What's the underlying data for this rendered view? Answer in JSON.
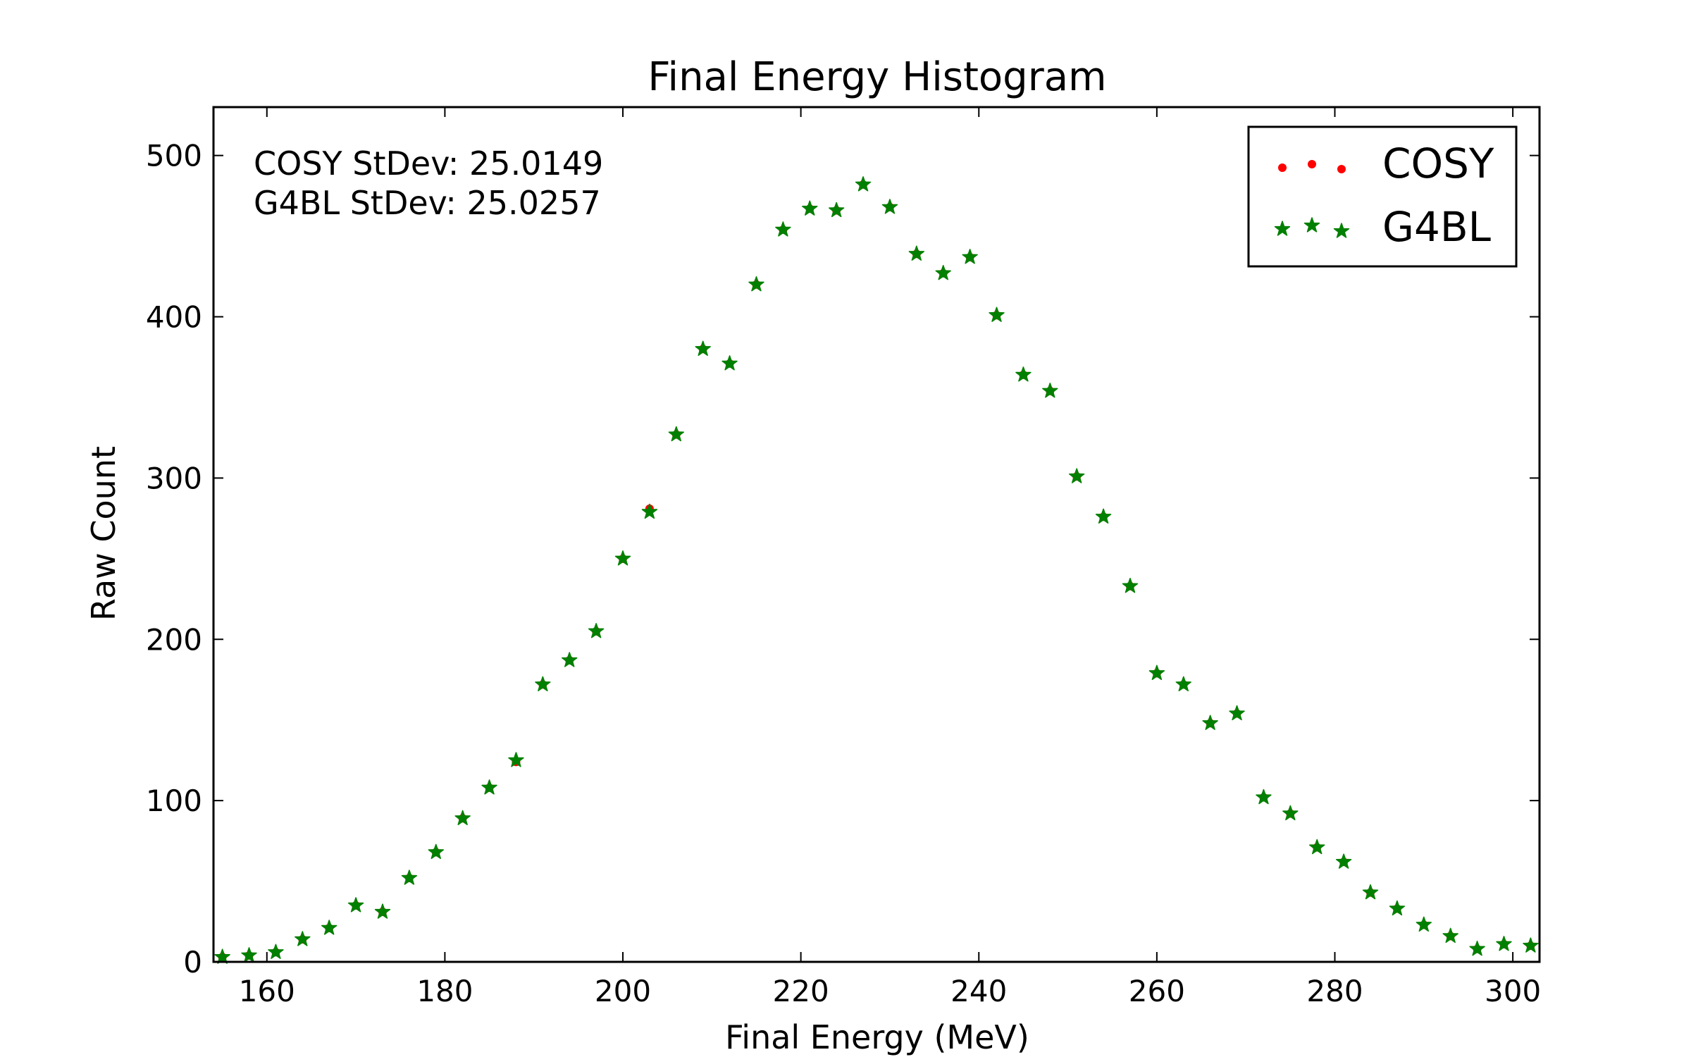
{
  "chart_data": {
    "type": "scatter",
    "title": "Final Energy Histogram",
    "xlabel": "Final Energy (MeV)",
    "ylabel": "Raw Count",
    "xlim": [
      154,
      303
    ],
    "ylim": [
      0,
      530
    ],
    "xticks": [
      160,
      180,
      200,
      220,
      240,
      260,
      280,
      300
    ],
    "yticks": [
      0,
      100,
      200,
      300,
      400,
      500
    ],
    "grid": false,
    "legend_position": "top-right",
    "annotations": [
      "COSY StDev: 25.0149",
      "G4BL StDev: 25.0257"
    ],
    "series": [
      {
        "name": "COSY",
        "marker": "dot",
        "color": "#ff0000",
        "x": [
          155,
          158,
          161,
          164,
          167,
          170,
          173,
          176,
          179,
          182,
          185,
          188,
          191,
          194,
          197,
          200,
          203,
          206,
          209,
          212,
          215,
          218,
          221,
          224,
          227,
          230,
          233,
          236,
          239,
          242,
          245,
          248,
          251,
          254,
          257,
          260,
          263,
          266,
          269,
          272,
          275,
          278,
          281,
          284,
          287,
          290,
          293,
          296,
          299,
          302
        ],
        "y": [
          3,
          4,
          6,
          14,
          21,
          35,
          31,
          52,
          68,
          89,
          108,
          124,
          172,
          187,
          205,
          250,
          281,
          327,
          380,
          371,
          420,
          454,
          467,
          466,
          482,
          468,
          439,
          427,
          437,
          401,
          364,
          354,
          301,
          276,
          233,
          179,
          172,
          148,
          154,
          102,
          92,
          71,
          62,
          43,
          33,
          23,
          16,
          8,
          11,
          10
        ]
      },
      {
        "name": "G4BL",
        "marker": "star",
        "color": "#008000",
        "x": [
          155,
          158,
          161,
          164,
          167,
          170,
          173,
          176,
          179,
          182,
          185,
          188,
          191,
          194,
          197,
          200,
          203,
          206,
          209,
          212,
          215,
          218,
          221,
          224,
          227,
          230,
          233,
          236,
          239,
          242,
          245,
          248,
          251,
          254,
          257,
          260,
          263,
          266,
          269,
          272,
          275,
          278,
          281,
          284,
          287,
          290,
          293,
          296,
          299,
          302
        ],
        "y": [
          3,
          4,
          6,
          14,
          21,
          35,
          31,
          52,
          68,
          89,
          108,
          125,
          172,
          187,
          205,
          250,
          279,
          327,
          380,
          371,
          420,
          454,
          467,
          466,
          482,
          468,
          439,
          427,
          437,
          401,
          364,
          354,
          301,
          276,
          233,
          179,
          172,
          148,
          154,
          102,
          92,
          71,
          62,
          43,
          33,
          23,
          16,
          8,
          11,
          10
        ]
      }
    ]
  }
}
